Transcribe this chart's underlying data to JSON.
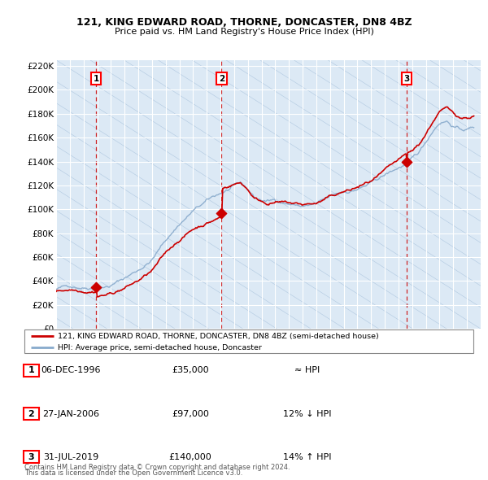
{
  "title_line1": "121, KING EDWARD ROAD, THORNE, DONCASTER, DN8 4BZ",
  "title_line2": "Price paid vs. HM Land Registry's House Price Index (HPI)",
  "background_color": "#ffffff",
  "plot_bg_color": "#dce9f5",
  "hatch_color": "#c5d8ec",
  "grid_color": "#ffffff",
  "sale_color": "#cc0000",
  "hpi_color": "#88aacc",
  "vline_color": "#cc0000",
  "sale_labels_info": [
    {
      "num": "1",
      "date": "06-DEC-1996",
      "price": "£35,000",
      "rel": "≈ HPI"
    },
    {
      "num": "2",
      "date": "27-JAN-2006",
      "price": "£97,000",
      "rel": "12% ↓ HPI"
    },
    {
      "num": "3",
      "date": "31-JUL-2019",
      "price": "£140,000",
      "rel": "14% ↑ HPI"
    }
  ],
  "legend_sale_label": "121, KING EDWARD ROAD, THORNE, DONCASTER, DN8 4BZ (semi-detached house)",
  "legend_hpi_label": "HPI: Average price, semi-detached house, Doncaster",
  "footer_line1": "Contains HM Land Registry data © Crown copyright and database right 2024.",
  "footer_line2": "This data is licensed under the Open Government Licence v3.0.",
  "ylim": [
    0,
    225000
  ],
  "yticks": [
    0,
    20000,
    40000,
    60000,
    80000,
    100000,
    120000,
    140000,
    160000,
    180000,
    200000,
    220000
  ],
  "ytick_labels": [
    "£0",
    "£20K",
    "£40K",
    "£60K",
    "£80K",
    "£100K",
    "£120K",
    "£140K",
    "£160K",
    "£180K",
    "£200K",
    "£220K"
  ],
  "sale_dates_decimal": [
    1996.92,
    2006.08,
    2019.58
  ],
  "sale_prices": [
    35000,
    97000,
    140000
  ],
  "xstart_year": 1994,
  "xend_year": 2025
}
